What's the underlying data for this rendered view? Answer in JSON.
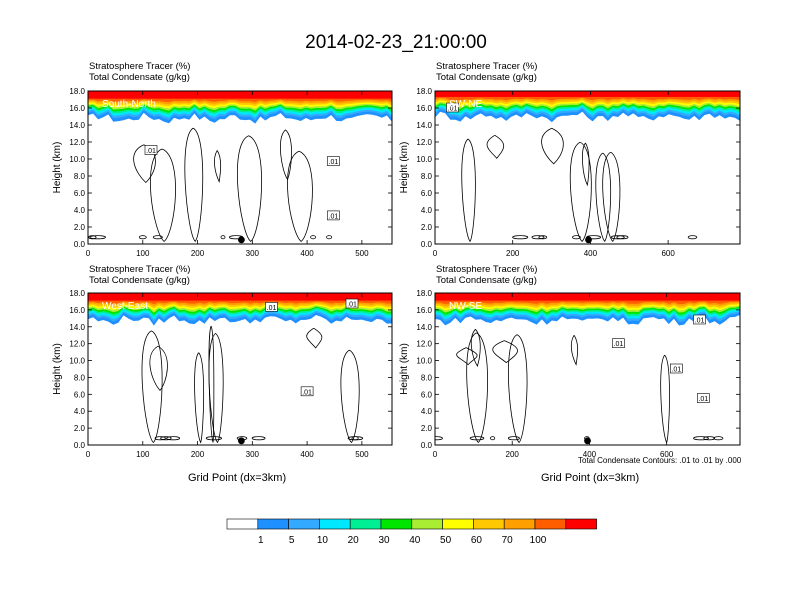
{
  "title": "2014-02-23_21:00:00",
  "colorbar": {
    "levels": [
      "1",
      "5",
      "10",
      "20",
      "30",
      "40",
      "50",
      "60",
      "70",
      "100"
    ],
    "colors": [
      "#ffffff",
      "#1e90ff",
      "#33aaff",
      "#00e8ff",
      "#00ef95",
      "#00e600",
      "#aaee33",
      "#ffff00",
      "#ffc800",
      "#ffa000",
      "#ff5e00",
      "#ff0000"
    ]
  },
  "footnote": "Total Condensate Contours: .01 to .01 by .000",
  "chart_data": [
    {
      "type": "heatmap",
      "name": "South-North",
      "title_lines": [
        "Stratosphere Tracer   (%)",
        "Total Condensate   (g/kg)"
      ],
      "ylabel": "Height (km)",
      "xlabel": "",
      "xlim": [
        0,
        555
      ],
      "ylim": [
        0,
        18
      ],
      "xticks": [
        "0",
        "100",
        "200",
        "300",
        "400",
        "500"
      ],
      "xtick_values": [
        0,
        100,
        200,
        300,
        400,
        500
      ],
      "yticks": [
        "0.0",
        "2.0",
        "4.0",
        "6.0",
        "8.0",
        "10.0",
        "12.0",
        "14.0",
        "16.0",
        "18.0"
      ],
      "tracer_layer_base_km": 14.8,
      "marker_x": 280,
      "contour_labels": [
        {
          "text": ".01",
          "x": 115,
          "y": 11.0
        },
        {
          "text": ".01",
          "x": 448,
          "y": 9.7
        },
        {
          "text": ".01",
          "x": 448,
          "y": 3.3
        }
      ]
    },
    {
      "type": "heatmap",
      "name": "SW-NE",
      "title_lines": [
        "Stratosphere Tracer   (%)",
        "Total Condensate   (g/kg)"
      ],
      "ylabel": "Height (km)",
      "xlabel": "",
      "xlim": [
        0,
        785
      ],
      "ylim": [
        0,
        18
      ],
      "xticks": [
        "0",
        "200",
        "400",
        "600"
      ],
      "xtick_values": [
        0,
        200,
        400,
        600
      ],
      "yticks": [
        "0.0",
        "2.0",
        "4.0",
        "6.0",
        "8.0",
        "10.0",
        "12.0",
        "14.0",
        "16.0",
        "18.0"
      ],
      "tracer_layer_base_km": 15.0,
      "marker_x": 395,
      "contour_labels": [
        {
          "text": ".01",
          "x": 45,
          "y": 16.0
        }
      ]
    },
    {
      "type": "heatmap",
      "name": "West-East",
      "title_lines": [
        "Stratosphere Tracer   (%)",
        "Total Condensate   (g/kg)"
      ],
      "ylabel": "Height (km)",
      "xlabel": "Grid Point (dx=3km)",
      "xlim": [
        0,
        555
      ],
      "ylim": [
        0,
        18
      ],
      "xticks": [
        "0",
        "100",
        "200",
        "300",
        "400",
        "500"
      ],
      "xtick_values": [
        0,
        100,
        200,
        300,
        400,
        500
      ],
      "yticks": [
        "0.0",
        "2.0",
        "4.0",
        "6.0",
        "8.0",
        "10.0",
        "12.0",
        "14.0",
        "16.0",
        "18.0"
      ],
      "tracer_layer_base_km": 14.8,
      "marker_x": 280,
      "contour_labels": [
        {
          "text": ".01",
          "x": 335,
          "y": 16.3
        },
        {
          "text": ".01",
          "x": 482,
          "y": 16.7
        },
        {
          "text": ".01",
          "x": 400,
          "y": 6.3
        }
      ]
    },
    {
      "type": "heatmap",
      "name": "NW-SE",
      "title_lines": [
        "Stratosphere Tracer   (%)",
        "Total Condensate   (g/kg)"
      ],
      "ylabel": "Height (km)",
      "xlabel": "Grid Point (dx=3km)",
      "xlim": [
        0,
        790
      ],
      "ylim": [
        0,
        18
      ],
      "xticks": [
        "0",
        "200",
        "400",
        "600"
      ],
      "xtick_values": [
        0,
        200,
        400,
        600
      ],
      "yticks": [
        "0.0",
        "2.0",
        "4.0",
        "6.0",
        "8.0",
        "10.0",
        "12.0",
        "14.0",
        "16.0",
        "18.0"
      ],
      "tracer_layer_base_km": 14.8,
      "marker_x": 395,
      "contour_labels": [
        {
          "text": ".01",
          "x": 685,
          "y": 14.8
        },
        {
          "text": ".01",
          "x": 475,
          "y": 12.0
        },
        {
          "text": ".01",
          "x": 625,
          "y": 9.0
        },
        {
          "text": ".01",
          "x": 695,
          "y": 5.5
        }
      ]
    }
  ]
}
